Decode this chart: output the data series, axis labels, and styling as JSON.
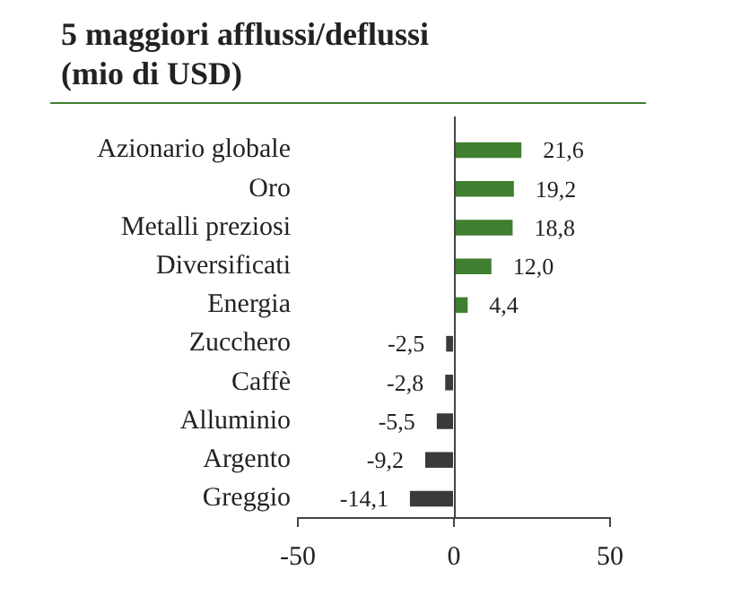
{
  "chart_data": {
    "type": "bar",
    "orientation": "horizontal",
    "title": "5 maggiori afflussi/deflussi\n(mio di USD)",
    "categories": [
      "Azionario globale",
      "Oro",
      "Metalli preziosi",
      "Diversificati",
      "Energia",
      "Zucchero",
      "Caffè",
      "Alluminio",
      "Argento",
      "Greggio"
    ],
    "values": [
      21.6,
      19.2,
      18.8,
      12.0,
      4.4,
      -2.5,
      -2.8,
      -5.5,
      -9.2,
      -14.1
    ],
    "colors": [
      "#3f7f2f",
      "#3f7f2f",
      "#3f7f2f",
      "#3f7f2f",
      "#3f7f2f",
      "#3a3a3a",
      "#3a3a3a",
      "#3a3a3a",
      "#3a3a3a",
      "#3a3a3a"
    ],
    "value_labels": [
      "21,6",
      "19,2",
      "18,8",
      "12,0",
      "4,4",
      "-2,5",
      "-2,8",
      "-5,5",
      "-9,2",
      "-14,1"
    ],
    "ref_lines": [
      {
        "axis": "x",
        "value": 0,
        "color": "#444444"
      }
    ],
    "xlim": [
      -50,
      50
    ],
    "xticks": [
      -50,
      0,
      50
    ],
    "grid": false,
    "legend": false
  }
}
